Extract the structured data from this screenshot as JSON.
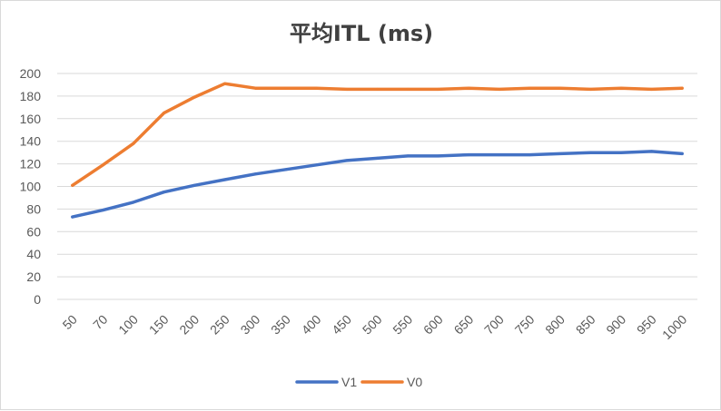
{
  "chart_data": {
    "type": "line",
    "title": "平均ITL (ms)",
    "xlabel": "",
    "ylabel": "",
    "ylim": [
      0,
      200
    ],
    "yticks": [
      0,
      20,
      40,
      60,
      80,
      100,
      120,
      140,
      160,
      180,
      200
    ],
    "grid": true,
    "legend_position": "bottom",
    "categories": [
      "50",
      "70",
      "100",
      "150",
      "200",
      "250",
      "300",
      "350",
      "400",
      "450",
      "500",
      "550",
      "600",
      "650",
      "700",
      "750",
      "800",
      "850",
      "900",
      "950",
      "1000"
    ],
    "series": [
      {
        "name": "V1",
        "color": "#4472c4",
        "values": [
          73,
          79,
          86,
          95,
          101,
          106,
          111,
          115,
          119,
          123,
          125,
          127,
          127,
          128,
          128,
          128,
          129,
          130,
          130,
          131,
          129
        ]
      },
      {
        "name": "V0",
        "color": "#ed7d31",
        "values": [
          101,
          119,
          138,
          165,
          179,
          191,
          187,
          187,
          187,
          186,
          186,
          186,
          186,
          187,
          186,
          187,
          187,
          186,
          187,
          186,
          187
        ]
      }
    ]
  }
}
